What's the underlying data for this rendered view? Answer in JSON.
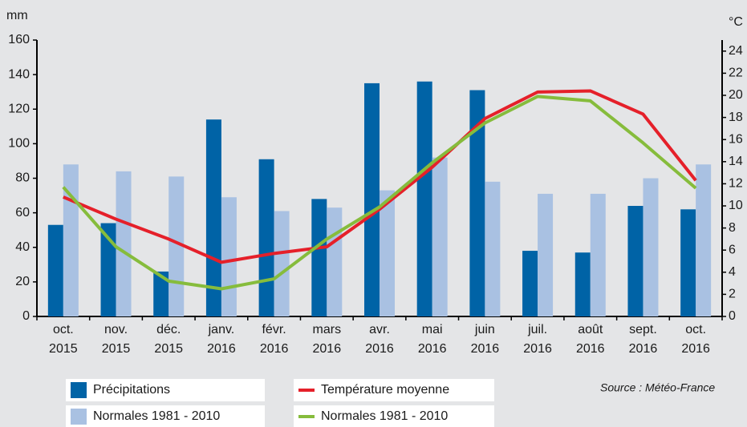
{
  "chart_data": {
    "type": "bar-line",
    "y_label": "mm",
    "y2_label": "°C",
    "source": "Source : Météo-France",
    "categories": [
      [
        "oct.",
        "2015"
      ],
      [
        "nov.",
        "2015"
      ],
      [
        "déc.",
        "2015"
      ],
      [
        "janv.",
        "2016"
      ],
      [
        "févr.",
        "2016"
      ],
      [
        "mars",
        "2016"
      ],
      [
        "avr.",
        "2016"
      ],
      [
        "mai",
        "2016"
      ],
      [
        "juin",
        "2016"
      ],
      [
        "juil.",
        "2016"
      ],
      [
        "août",
        "2016"
      ],
      [
        "sept.",
        "2016"
      ],
      [
        "oct.",
        "2016"
      ]
    ],
    "ylim": [
      0,
      160
    ],
    "yticks": [
      0,
      20,
      40,
      60,
      80,
      100,
      120,
      140,
      160
    ],
    "y2lim": [
      0,
      25
    ],
    "y2ticks": [
      0,
      2,
      4,
      6,
      8,
      10,
      12,
      14,
      16,
      18,
      20,
      22,
      24
    ],
    "series": [
      {
        "name": "Précipitations",
        "type": "bar",
        "color": "#0063a6",
        "values": [
          53,
          54,
          26,
          114,
          91,
          68,
          135,
          136,
          131,
          38,
          37,
          64,
          62
        ]
      },
      {
        "name": "Normales 1981 - 2010",
        "type": "bar",
        "color": "#a9c1e2",
        "values": [
          88,
          84,
          81,
          69,
          61,
          63,
          73,
          92,
          78,
          71,
          71,
          80,
          88
        ]
      },
      {
        "name": "Température moyenne",
        "type": "line",
        "axis": "y2",
        "color": "#e5202a",
        "values": [
          10.8,
          8.8,
          7.0,
          4.9,
          5.7,
          6.3,
          9.7,
          13.5,
          17.9,
          20.3,
          20.4,
          18.3,
          12.3
        ]
      },
      {
        "name": "Normales 1981 - 2010",
        "type": "line",
        "axis": "y2",
        "color": "#86bc3c",
        "values": [
          11.7,
          6.3,
          3.2,
          2.5,
          3.4,
          7.0,
          9.9,
          13.9,
          17.5,
          19.9,
          19.5,
          15.7,
          11.6
        ]
      }
    ]
  }
}
